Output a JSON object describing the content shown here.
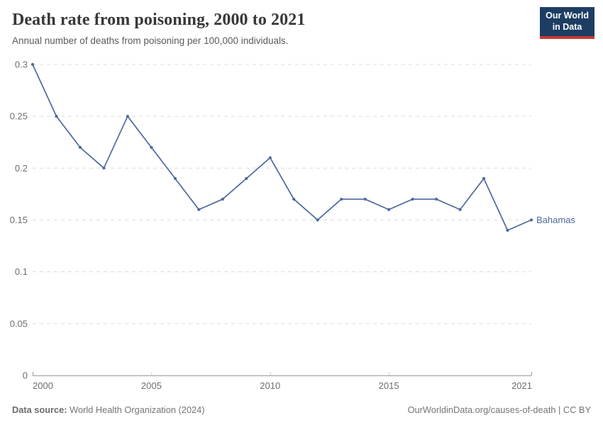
{
  "header": {
    "title": "Death rate from poisoning, 2000 to 2021",
    "subtitle": "Annual number of deaths from poisoning per 100,000 individuals."
  },
  "logo": {
    "line1": "Our World",
    "line2": "in Data",
    "bg_color": "#1d3d63",
    "accent_color": "#cd3731"
  },
  "footer": {
    "source_label": "Data source:",
    "source_text": "World Health Organization (2024)",
    "rights": "OurWorldinData.org/causes-of-death | CC BY"
  },
  "chart_data": {
    "type": "line",
    "title": "Death rate from poisoning, 2000 to 2021",
    "xlabel": "",
    "ylabel": "",
    "x": [
      2000,
      2001,
      2002,
      2003,
      2004,
      2005,
      2006,
      2007,
      2008,
      2009,
      2010,
      2011,
      2012,
      2013,
      2014,
      2015,
      2016,
      2017,
      2018,
      2019,
      2020,
      2021
    ],
    "series": [
      {
        "name": "Bahamas",
        "color": "#4C6A9C",
        "values": [
          0.3,
          0.25,
          0.22,
          0.2,
          0.25,
          0.22,
          0.19,
          0.16,
          0.17,
          0.19,
          0.21,
          0.17,
          0.15,
          0.17,
          0.17,
          0.16,
          0.17,
          0.17,
          0.16,
          0.19,
          0.14,
          0.15
        ]
      }
    ],
    "ylim": [
      0,
      0.3
    ],
    "y_ticks": [
      0,
      0.05,
      0.1,
      0.15,
      0.2,
      0.25,
      0.3
    ],
    "y_tick_labels": [
      "0",
      "0.05",
      "0.1",
      "0.15",
      "0.2",
      "0.25",
      "0.3"
    ],
    "x_ticks": [
      2000,
      2005,
      2010,
      2015,
      2021
    ],
    "x_tick_labels": [
      "2000",
      "2005",
      "2010",
      "2015",
      "2021"
    ],
    "grid": "horizontal-dashed",
    "legend_position": "end-of-line-label",
    "colors": {
      "grid": "#dcdcdc",
      "axis": "#999999",
      "minor_tick": "#cccccc",
      "tick_label": "#6e6e6e"
    }
  }
}
